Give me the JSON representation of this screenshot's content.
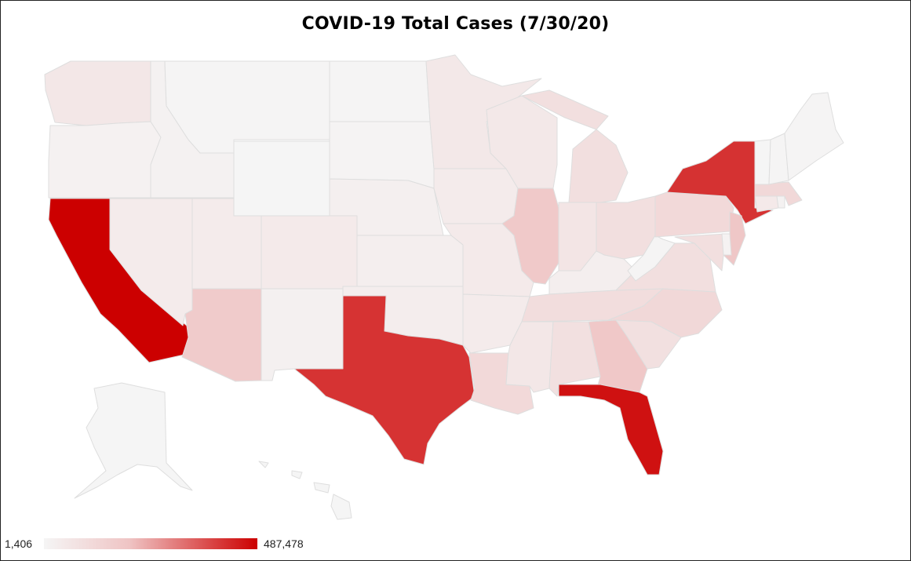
{
  "title": "COVID-19 Total Cases (7/30/20)",
  "legend": {
    "min_label": "1,406",
    "max_label": "487,478",
    "min_value": 1406,
    "max_value": 487478,
    "min_color": "#f5f5f5",
    "max_color": "#cc0000"
  },
  "map_data": {
    "type": "choropleth",
    "region": "United States",
    "metric": "Total COVID-19 cases",
    "states": [
      {
        "code": "WA",
        "cases": 56000
      },
      {
        "code": "OR",
        "cases": 17000
      },
      {
        "code": "CA",
        "cases": 487478
      },
      {
        "code": "ID",
        "cases": 19000
      },
      {
        "code": "NV",
        "cases": 43000
      },
      {
        "code": "MT",
        "cases": 3600
      },
      {
        "code": "WY",
        "cases": 2700
      },
      {
        "code": "UT",
        "cases": 40000
      },
      {
        "code": "AZ",
        "cases": 170000
      },
      {
        "code": "CO",
        "cases": 45000
      },
      {
        "code": "NM",
        "cases": 20000
      },
      {
        "code": "ND",
        "cases": 6400
      },
      {
        "code": "SD",
        "cases": 8700
      },
      {
        "code": "NE",
        "cases": 25000
      },
      {
        "code": "KS",
        "cases": 28000
      },
      {
        "code": "OK",
        "cases": 35000
      },
      {
        "code": "TX",
        "cases": 410000
      },
      {
        "code": "MN",
        "cases": 52000
      },
      {
        "code": "IA",
        "cases": 43000
      },
      {
        "code": "MO",
        "cases": 45000
      },
      {
        "code": "AR",
        "cases": 40000
      },
      {
        "code": "LA",
        "cases": 113000
      },
      {
        "code": "WI",
        "cases": 52000
      },
      {
        "code": "IL",
        "cases": 175000
      },
      {
        "code": "MI",
        "cases": 88000
      },
      {
        "code": "IN",
        "cases": 64000
      },
      {
        "code": "OH",
        "cases": 89000
      },
      {
        "code": "KY",
        "cases": 28000
      },
      {
        "code": "TN",
        "cases": 96000
      },
      {
        "code": "MS",
        "cases": 58000
      },
      {
        "code": "AL",
        "cases": 84000
      },
      {
        "code": "GA",
        "cases": 178000
      },
      {
        "code": "FL",
        "cases": 461000
      },
      {
        "code": "SC",
        "cases": 86000
      },
      {
        "code": "NC",
        "cases": 118000
      },
      {
        "code": "VA",
        "cases": 88000
      },
      {
        "code": "WV",
        "cases": 6500
      },
      {
        "code": "PA",
        "cases": 113000
      },
      {
        "code": "NY",
        "cases": 412000
      },
      {
        "code": "NJ",
        "cases": 182000
      },
      {
        "code": "MD",
        "cases": 88000
      },
      {
        "code": "DE",
        "cases": 14000
      },
      {
        "code": "CT",
        "cases": 49000
      },
      {
        "code": "RI",
        "cases": 19000
      },
      {
        "code": "MA",
        "cases": 116000
      },
      {
        "code": "VT",
        "cases": 1406
      },
      {
        "code": "NH",
        "cases": 6500
      },
      {
        "code": "ME",
        "cases": 3900
      },
      {
        "code": "AK",
        "cases": 3300
      },
      {
        "code": "HI",
        "cases": 1900
      }
    ]
  }
}
